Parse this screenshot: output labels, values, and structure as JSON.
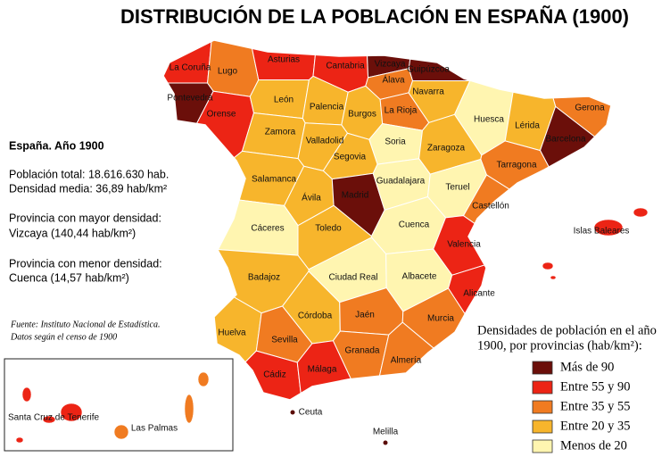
{
  "title": "DISTRIBUCIÓN DE LA POBLACIÓN EN ESPAÑA (1900)",
  "info": {
    "heading": "España. Año 1900",
    "lines": [
      "Población total: 18.616.630 hab.",
      "Densidad media: 36,89 hab/km²",
      "Provincia con mayor densidad:",
      "Vizcaya (140,44 hab/km²)",
      "Provincia con menor densidad:",
      "Cuenca (14,57 hab/km²)"
    ]
  },
  "source": [
    "Fuente: Instituto Nacional de Estadística.",
    "Datos según el censo de 1900"
  ],
  "legend": {
    "title": [
      "Densidades de población en el año",
      "1900, por provincias (hab/km²):"
    ],
    "items": [
      {
        "name": "Más de 90",
        "color": "#6b0f0a"
      },
      {
        "name": "Entre 55 y 90",
        "color": "#ec2415"
      },
      {
        "name": "Entre 35 y 55",
        "color": "#f07b21"
      },
      {
        "name": "Entre 20 y 35",
        "color": "#f7b52c"
      },
      {
        "name": "Menos de 20",
        "color": "#fff5b0"
      }
    ]
  },
  "provinces": [
    {
      "name": "La Coruña",
      "color": "#ec2415"
    },
    {
      "name": "Pontevedra",
      "color": "#6b0f0a"
    },
    {
      "name": "Lugo",
      "color": "#f07b21"
    },
    {
      "name": "Orense",
      "color": "#ec2415"
    },
    {
      "name": "Asturias",
      "color": "#ec2415"
    },
    {
      "name": "Cantabria",
      "color": "#ec2415"
    },
    {
      "name": "Vizcaya",
      "color": "#6b0f0a"
    },
    {
      "name": "Guipúzcoa",
      "color": "#6b0f0a"
    },
    {
      "name": "Álava",
      "color": "#f07b21"
    },
    {
      "name": "Navarra",
      "color": "#f7b52c"
    },
    {
      "name": "León",
      "color": "#f7b52c"
    },
    {
      "name": "Palencia",
      "color": "#f7b52c"
    },
    {
      "name": "Burgos",
      "color": "#f7b52c"
    },
    {
      "name": "La Rioja",
      "color": "#f07b21"
    },
    {
      "name": "Huesca",
      "color": "#fff5b0"
    },
    {
      "name": "Gerona",
      "color": "#f07b21"
    },
    {
      "name": "Lérida",
      "color": "#f7b52c"
    },
    {
      "name": "Barcelona",
      "color": "#6b0f0a"
    },
    {
      "name": "Zamora",
      "color": "#f7b52c"
    },
    {
      "name": "Valladolid",
      "color": "#f7b52c"
    },
    {
      "name": "Soria",
      "color": "#fff5b0"
    },
    {
      "name": "Zaragoza",
      "color": "#f7b52c"
    },
    {
      "name": "Tarragona",
      "color": "#f07b21"
    },
    {
      "name": "Segovia",
      "color": "#f7b52c"
    },
    {
      "name": "Salamanca",
      "color": "#f7b52c"
    },
    {
      "name": "Ávila",
      "color": "#f7b52c"
    },
    {
      "name": "Madrid",
      "color": "#6b0f0a"
    },
    {
      "name": "Guadalajara",
      "color": "#fff5b0"
    },
    {
      "name": "Teruel",
      "color": "#fff5b0"
    },
    {
      "name": "Castellón",
      "color": "#f07b21"
    },
    {
      "name": "Cáceres",
      "color": "#fff5b0"
    },
    {
      "name": "Toledo",
      "color": "#f7b52c"
    },
    {
      "name": "Cuenca",
      "color": "#fff5b0"
    },
    {
      "name": "Valencia",
      "color": "#ec2415"
    },
    {
      "name": "Badajoz",
      "color": "#f7b52c"
    },
    {
      "name": "Ciudad Real",
      "color": "#fff5b0"
    },
    {
      "name": "Albacete",
      "color": "#fff5b0"
    },
    {
      "name": "Alicante",
      "color": "#ec2415"
    },
    {
      "name": "Córdoba",
      "color": "#f7b52c"
    },
    {
      "name": "Jaén",
      "color": "#f07b21"
    },
    {
      "name": "Murcia",
      "color": "#f07b21"
    },
    {
      "name": "Huelva",
      "color": "#f7b52c"
    },
    {
      "name": "Sevilla",
      "color": "#f07b21"
    },
    {
      "name": "Granada",
      "color": "#f07b21"
    },
    {
      "name": "Almería",
      "color": "#f07b21"
    },
    {
      "name": "Cádiz",
      "color": "#ec2415"
    },
    {
      "name": "Málaga",
      "color": "#ec2415"
    }
  ],
  "islands": [
    {
      "name": "Islas Baleares",
      "color": "#ec2415"
    },
    {
      "name": "Santa Cruz de Tenerife",
      "color": "#ec2415"
    },
    {
      "name": "Las Palmas",
      "color": "#f07b21"
    }
  ],
  "cities": [
    {
      "name": "Ceuta",
      "color": "#5a0c08"
    },
    {
      "name": "Melilla",
      "color": "#5a0c08"
    }
  ]
}
